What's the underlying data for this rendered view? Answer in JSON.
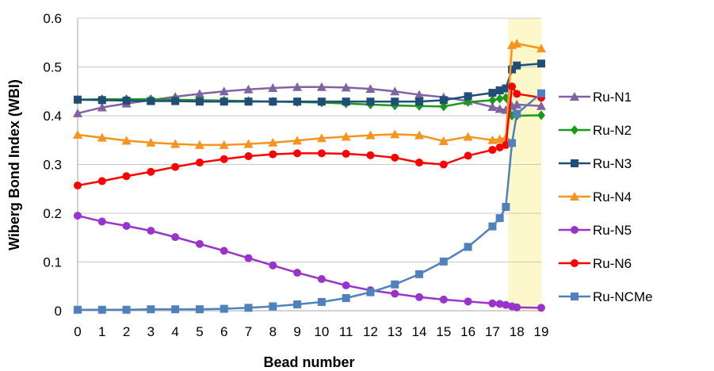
{
  "chart_data": {
    "type": "line",
    "title": "",
    "xlabel": "Bead number",
    "ylabel": "Wiberg Bond Index (WBI)",
    "ylim": [
      0,
      0.6
    ],
    "yticks": [
      "0",
      "0.1",
      "0.2",
      "0.3",
      "0.4",
      "0.5",
      "0.6"
    ],
    "xticks": [
      "0",
      "1",
      "2",
      "3",
      "4",
      "5",
      "6",
      "7",
      "8",
      "9",
      "10",
      "11",
      "12",
      "13",
      "14",
      "15",
      "16",
      "17",
      "18",
      "19"
    ],
    "grid": "horizontal",
    "legend_position": "right",
    "highlight": {
      "x_from": 17.65,
      "x_to": 19,
      "color": "#fcf8c9"
    },
    "x": [
      0,
      1,
      2,
      3,
      4,
      5,
      6,
      7,
      8,
      9,
      10,
      11,
      12,
      13,
      14,
      15,
      16,
      17,
      17.3,
      17.55,
      17.8,
      18,
      19
    ],
    "series": [
      {
        "name": "Ru-N1",
        "color": "#8064a2",
        "marker": "triangle",
        "values": [
          0.405,
          0.417,
          0.425,
          0.432,
          0.439,
          0.445,
          0.45,
          0.454,
          0.457,
          0.459,
          0.459,
          0.458,
          0.455,
          0.45,
          0.443,
          0.438,
          0.43,
          0.418,
          0.414,
          0.412,
          0.42,
          0.423,
          0.42
        ]
      },
      {
        "name": "Ru-N2",
        "color": "#1a9a1a",
        "marker": "diamond",
        "values": [
          0.433,
          0.434,
          0.434,
          0.434,
          0.433,
          0.432,
          0.431,
          0.43,
          0.429,
          0.428,
          0.427,
          0.425,
          0.423,
          0.421,
          0.42,
          0.419,
          0.428,
          0.432,
          0.435,
          0.437,
          0.4,
          0.4,
          0.401
        ]
      },
      {
        "name": "Ru-N3",
        "color": "#1f4e79",
        "marker": "square",
        "values": [
          0.433,
          0.432,
          0.431,
          0.43,
          0.43,
          0.429,
          0.429,
          0.429,
          0.429,
          0.429,
          0.429,
          0.429,
          0.429,
          0.429,
          0.429,
          0.432,
          0.44,
          0.447,
          0.452,
          0.456,
          0.495,
          0.503,
          0.507
        ]
      },
      {
        "name": "Ru-N4",
        "color": "#f7941d",
        "marker": "triangle",
        "values": [
          0.361,
          0.355,
          0.349,
          0.345,
          0.342,
          0.34,
          0.34,
          0.342,
          0.345,
          0.349,
          0.354,
          0.357,
          0.36,
          0.362,
          0.36,
          0.348,
          0.357,
          0.35,
          0.352,
          0.355,
          0.545,
          0.548,
          0.538
        ]
      },
      {
        "name": "Ru-N5",
        "color": "#9933cc",
        "marker": "circle",
        "values": [
          0.195,
          0.183,
          0.174,
          0.164,
          0.151,
          0.137,
          0.123,
          0.108,
          0.093,
          0.078,
          0.065,
          0.052,
          0.042,
          0.035,
          0.028,
          0.023,
          0.019,
          0.015,
          0.014,
          0.012,
          0.009,
          0.007,
          0.006
        ]
      },
      {
        "name": "Ru-N6",
        "color": "#ff0000",
        "marker": "circle",
        "values": [
          0.257,
          0.266,
          0.276,
          0.285,
          0.295,
          0.304,
          0.311,
          0.317,
          0.321,
          0.323,
          0.323,
          0.322,
          0.319,
          0.314,
          0.304,
          0.3,
          0.318,
          0.33,
          0.335,
          0.34,
          0.46,
          0.445,
          0.437
        ]
      },
      {
        "name": "Ru-NCMe",
        "color": "#4f81bd",
        "marker": "square",
        "values": [
          0.002,
          0.002,
          0.002,
          0.003,
          0.003,
          0.003,
          0.004,
          0.006,
          0.009,
          0.013,
          0.018,
          0.026,
          0.038,
          0.054,
          0.075,
          0.101,
          0.131,
          0.173,
          0.19,
          0.213,
          0.344,
          0.404,
          0.446
        ]
      }
    ]
  }
}
